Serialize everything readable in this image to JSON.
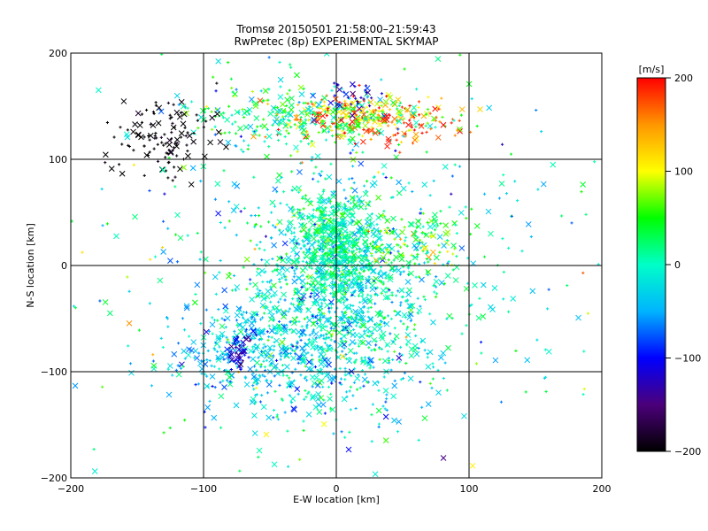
{
  "chart_data": {
    "type": "scatter",
    "title": "Tromsø 20150501 21:58:00–21:59:43",
    "subtitle": "RwPretec (8p) EXPERIMENTAL SKYMAP",
    "xlabel": "E-W location [km]",
    "ylabel": "N-S location [km]",
    "xlim": [
      -200,
      200
    ],
    "ylim": [
      -200,
      200
    ],
    "xticks": [
      -200,
      -100,
      0,
      100,
      200
    ],
    "yticks": [
      -200,
      -100,
      0,
      100,
      200
    ],
    "grid": true,
    "markers": [
      "+",
      "x"
    ],
    "colorbar": {
      "label": "[m/s]",
      "range": [
        -200,
        200
      ],
      "ticks": [
        200,
        100,
        0,
        -100,
        -200
      ],
      "colormap": [
        "#000000",
        "#4b007a",
        "#0000ff",
        "#00b4ff",
        "#00ffc8",
        "#00ff00",
        "#ffff00",
        "#ff9600",
        "#ff0000"
      ]
    },
    "clusters": [
      {
        "x": 0,
        "y": -30,
        "sx": 40,
        "sy": 55,
        "n": 1200,
        "v": -10,
        "dv": 35
      },
      {
        "x": 0,
        "y": 20,
        "sx": 15,
        "sy": 25,
        "n": 450,
        "v": 10,
        "dv": 25
      },
      {
        "x": -60,
        "y": -80,
        "sx": 35,
        "sy": 25,
        "n": 350,
        "v": -40,
        "dv": 25
      },
      {
        "x": 20,
        "y": 140,
        "sx": 30,
        "sy": 10,
        "n": 300,
        "v": 110,
        "dv": 70
      },
      {
        "x": -40,
        "y": 140,
        "sx": 35,
        "sy": 15,
        "n": 200,
        "v": 20,
        "dv": 40
      },
      {
        "x": -130,
        "y": 120,
        "sx": 18,
        "sy": 20,
        "n": 120,
        "v": -200,
        "dv": 10
      },
      {
        "x": 60,
        "y": 25,
        "sx": 20,
        "sy": 15,
        "n": 100,
        "v": 60,
        "dv": 40
      },
      {
        "x": 0,
        "y": 0,
        "sx": 120,
        "sy": 110,
        "n": 450,
        "v": 0,
        "dv": 60
      },
      {
        "x": -72,
        "y": -80,
        "sx": 5,
        "sy": 8,
        "n": 40,
        "v": -120,
        "dv": 20
      },
      {
        "x": 10,
        "y": 160,
        "sx": 8,
        "sy": 8,
        "n": 30,
        "v": -120,
        "dv": 20
      },
      {
        "x": 40,
        "y": 130,
        "sx": 20,
        "sy": 10,
        "n": 40,
        "v": 180,
        "dv": 20
      }
    ]
  }
}
